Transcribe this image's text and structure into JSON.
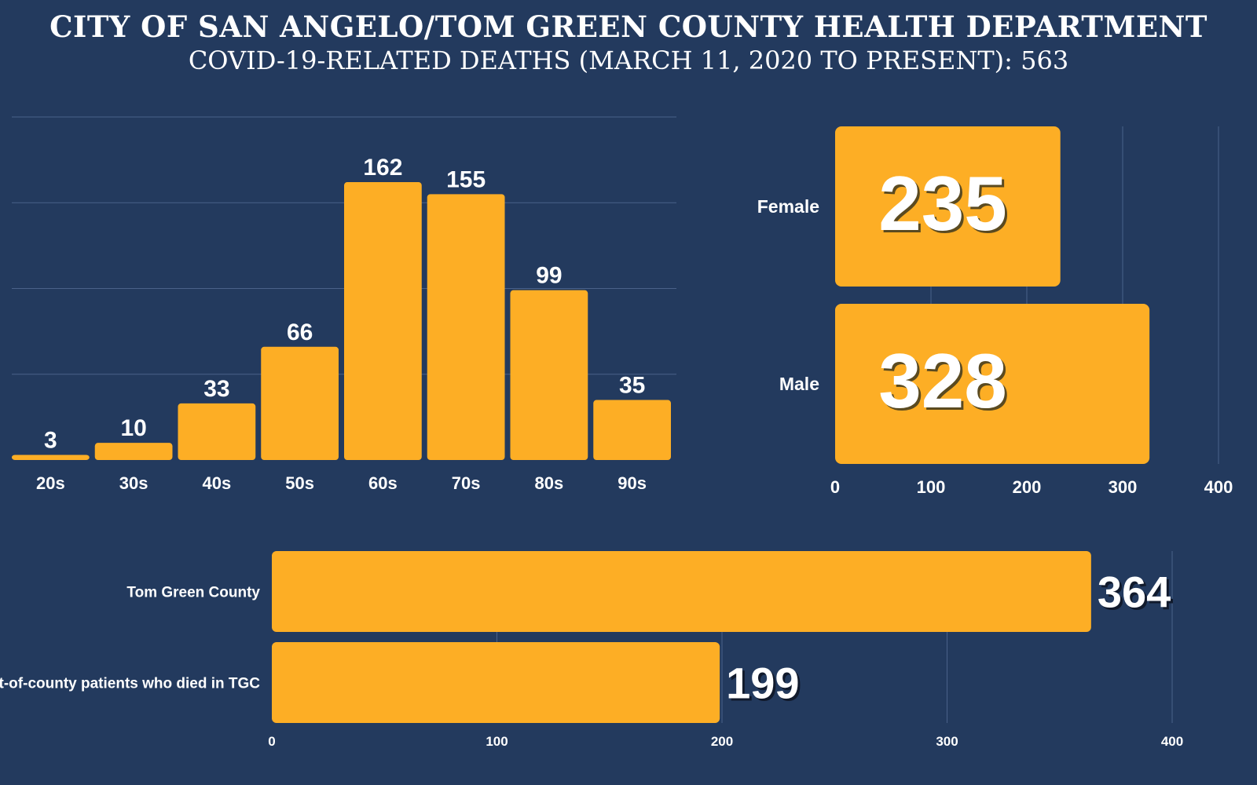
{
  "header": {
    "title": "CITY OF SAN ANGELO/TOM GREEN COUNTY HEALTH DEPARTMENT",
    "subtitle": "COVID-19-RELATED DEATHS (MARCH 11, 2020 TO PRESENT): 563"
  },
  "colors": {
    "background": "#233a5e",
    "bar": "#fdae25",
    "grid": "#4a6189",
    "text": "#ffffff"
  },
  "chart_data": [
    {
      "type": "bar",
      "categories": [
        "20s",
        "30s",
        "40s",
        "50s",
        "60s",
        "70s",
        "80s",
        "90s"
      ],
      "values": [
        3,
        10,
        33,
        66,
        162,
        155,
        99,
        35
      ],
      "ylim": [
        0,
        200
      ],
      "grid": true,
      "xlabel": "",
      "ylabel": ""
    },
    {
      "type": "bar",
      "orientation": "horizontal",
      "categories": [
        "Female",
        "Male"
      ],
      "values": [
        235,
        328
      ],
      "xlim": [
        0,
        400
      ],
      "xticks": [
        "0",
        "100",
        "200",
        "300",
        "400"
      ],
      "grid": true
    },
    {
      "type": "bar",
      "orientation": "horizontal",
      "categories": [
        "Tom Green County",
        "Out-of-county patients who died in TGC"
      ],
      "values": [
        364,
        199
      ],
      "xlim": [
        0,
        400
      ],
      "xticks": [
        "0",
        "100",
        "200",
        "300",
        "400"
      ],
      "grid": true
    }
  ]
}
